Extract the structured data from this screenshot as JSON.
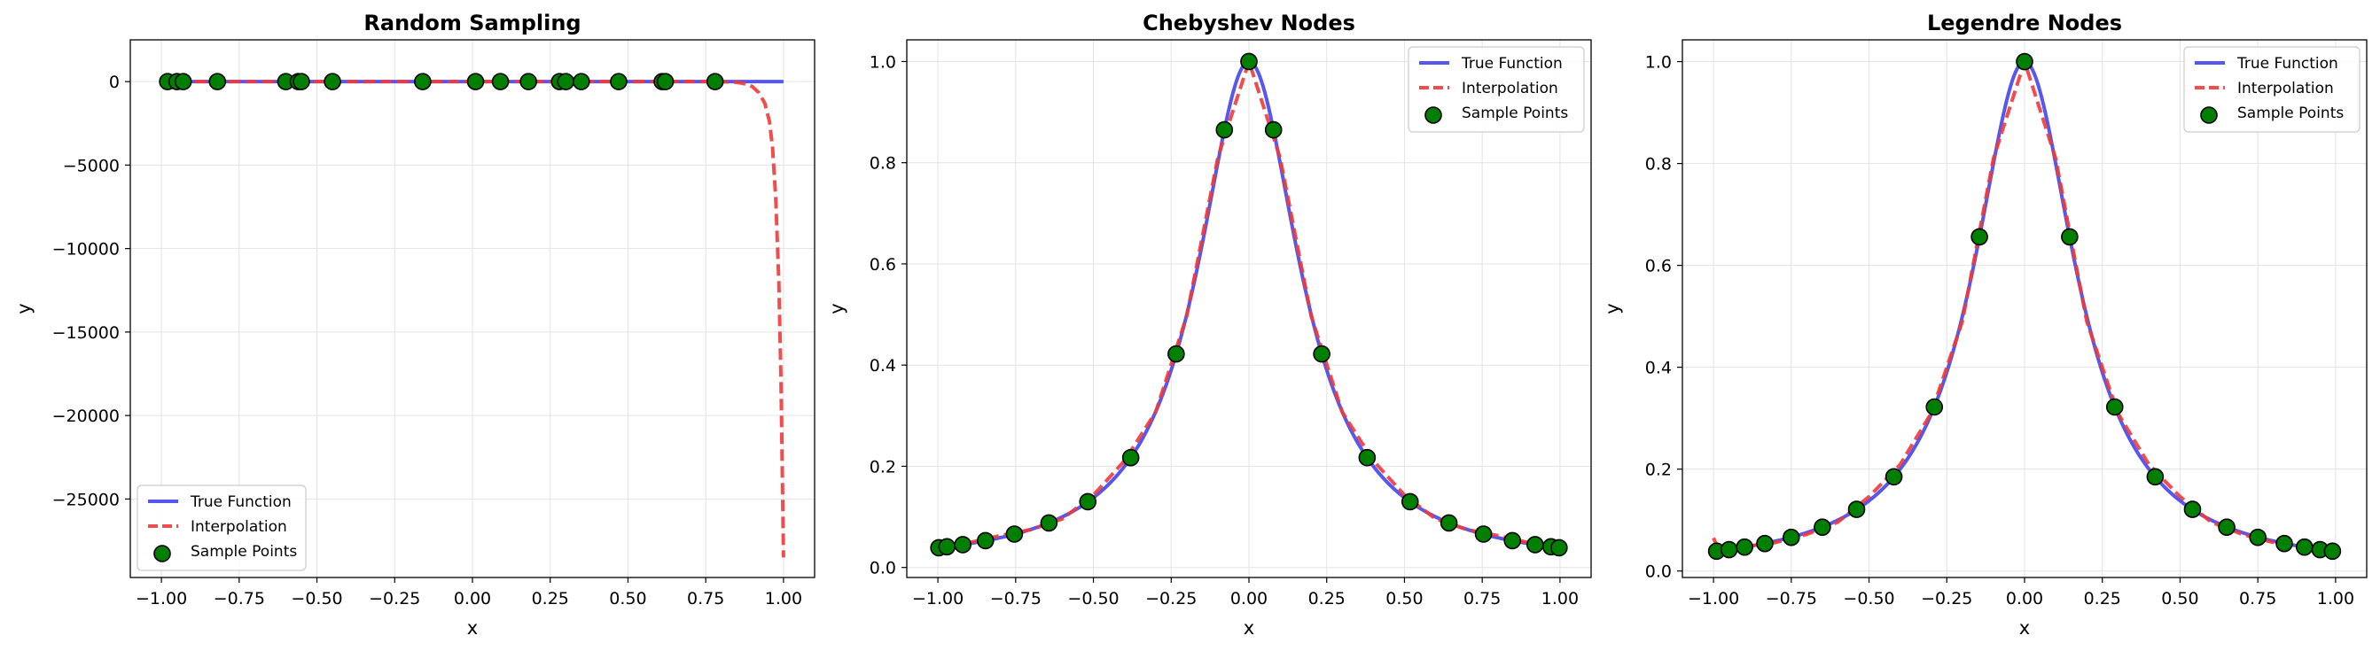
{
  "chart_data": [
    {
      "type": "line",
      "title": "Random Sampling",
      "xlabel": "x",
      "ylabel": "y",
      "xlim": [
        -1.1,
        1.1
      ],
      "ylim": [
        -29700,
        2500
      ],
      "xticks": [
        -1.0,
        -0.75,
        -0.5,
        -0.25,
        0.0,
        0.25,
        0.5,
        0.75,
        1.0
      ],
      "xtick_labels": [
        "−1.00",
        "−0.75",
        "−0.50",
        "−0.25",
        "0.00",
        "0.25",
        "0.50",
        "0.75",
        "1.00"
      ],
      "yticks": [
        0,
        -5000,
        -10000,
        -15000,
        -20000,
        -25000
      ],
      "ytick_labels": [
        "0",
        "−5000",
        "−10000",
        "−15000",
        "−20000",
        "−25000"
      ],
      "grid": true,
      "legend_position": "lower-left",
      "series": [
        {
          "name": "True Function",
          "style": "solid",
          "color": "#4444ee",
          "x": [
            -1.0,
            1.0
          ],
          "y": [
            0.04,
            0.04
          ]
        },
        {
          "name": "Interpolation",
          "style": "dashed",
          "color": "#ee3b3b",
          "x": [
            -1.0,
            0.8,
            0.85,
            0.88,
            0.9,
            0.92,
            0.94,
            0.955,
            0.965,
            0.975,
            0.985,
            0.992,
            1.0
          ],
          "y": [
            0,
            0,
            -40,
            -150,
            -300,
            -650,
            -1300,
            -2400,
            -4000,
            -7000,
            -12000,
            -18000,
            -28500
          ]
        },
        {
          "name": "Sample Points",
          "style": "markers",
          "color": "#007f00",
          "x": [
            -0.98,
            -0.95,
            -0.93,
            -0.82,
            -0.6,
            -0.56,
            -0.55,
            -0.45,
            -0.16,
            0.01,
            0.09,
            0.18,
            0.28,
            0.3,
            0.35,
            0.47,
            0.61,
            0.62,
            0.78
          ],
          "y": [
            0,
            0,
            0,
            0,
            0,
            0,
            0,
            0,
            0,
            0,
            0,
            0,
            0,
            0,
            0,
            0,
            0,
            0,
            0
          ]
        }
      ]
    },
    {
      "type": "line",
      "title": "Chebyshev Nodes",
      "xlabel": "x",
      "ylabel": "y",
      "xlim": [
        -1.1,
        1.1
      ],
      "ylim": [
        -0.0198,
        1.0428
      ],
      "xticks": [
        -1.0,
        -0.75,
        -0.5,
        -0.25,
        0.0,
        0.25,
        0.5,
        0.75,
        1.0
      ],
      "xtick_labels": [
        "−1.00",
        "−0.75",
        "−0.50",
        "−0.25",
        "0.00",
        "0.25",
        "0.50",
        "0.75",
        "1.00"
      ],
      "yticks": [
        0.0,
        0.2,
        0.4,
        0.6,
        0.8,
        1.0
      ],
      "ytick_labels": [
        "0.0",
        "0.2",
        "0.4",
        "0.6",
        "0.8",
        "1.0"
      ],
      "grid": true,
      "legend_position": "upper-right",
      "series": [
        {
          "name": "True Function",
          "style": "solid",
          "color": "#4444ee",
          "function": "1/(1+25x^2)"
        },
        {
          "name": "Interpolation",
          "style": "dashed",
          "color": "#ee3b3b",
          "x": [
            -1.0,
            -0.9,
            -0.8,
            -0.7,
            -0.6,
            -0.5,
            -0.4,
            -0.3,
            -0.2,
            -0.1,
            0.0,
            0.1,
            0.2,
            0.3,
            0.4,
            0.5,
            0.6,
            0.7,
            0.8,
            0.9,
            1.0
          ],
          "y": [
            0.038,
            0.049,
            0.063,
            0.075,
            0.096,
            0.143,
            0.211,
            0.307,
            0.497,
            0.81,
            1.0,
            0.81,
            0.497,
            0.307,
            0.211,
            0.143,
            0.096,
            0.075,
            0.063,
            0.049,
            0.038
          ]
        },
        {
          "name": "Sample Points",
          "style": "markers",
          "color": "#007f00",
          "x": [
            -0.997,
            -0.971,
            -0.92,
            -0.847,
            -0.754,
            -0.643,
            -0.518,
            -0.38,
            -0.234,
            -0.079,
            0.0,
            0.079,
            0.234,
            0.38,
            0.518,
            0.643,
            0.754,
            0.847,
            0.92,
            0.971,
            0.997
          ],
          "y": [
            0.039,
            0.041,
            0.045,
            0.053,
            0.066,
            0.088,
            0.13,
            0.217,
            0.422,
            0.865,
            1.0,
            0.865,
            0.422,
            0.217,
            0.13,
            0.088,
            0.066,
            0.053,
            0.045,
            0.041,
            0.039
          ]
        }
      ]
    },
    {
      "type": "line",
      "title": "Legendre Nodes",
      "xlabel": "x",
      "ylabel": "y",
      "xlim": [
        -1.1,
        1.1
      ],
      "ylim": [
        -0.0127,
        1.0427
      ],
      "xticks": [
        -1.0,
        -0.75,
        -0.5,
        -0.25,
        0.0,
        0.25,
        0.5,
        0.75,
        1.0
      ],
      "xtick_labels": [
        "−1.00",
        "−0.75",
        "−0.50",
        "−0.25",
        "0.00",
        "0.25",
        "0.50",
        "0.75",
        "1.00"
      ],
      "yticks": [
        0.0,
        0.2,
        0.4,
        0.6,
        0.8,
        1.0
      ],
      "ytick_labels": [
        "0.0",
        "0.2",
        "0.4",
        "0.6",
        "0.8",
        "1.0"
      ],
      "grid": true,
      "legend_position": "upper-right",
      "series": [
        {
          "name": "True Function",
          "style": "solid",
          "color": "#4444ee",
          "function": "1/(1+25x^2)"
        },
        {
          "name": "Interpolation",
          "style": "dashed",
          "color": "#ee3b3b",
          "x": [
            -1.0,
            -0.98,
            -0.95,
            -0.9,
            -0.8,
            -0.7,
            -0.6,
            -0.5,
            -0.4,
            -0.3,
            -0.2,
            -0.1,
            0.0,
            0.1,
            0.2,
            0.3,
            0.4,
            0.5,
            0.6,
            0.7,
            0.8,
            0.9,
            0.95,
            0.98,
            1.0
          ],
          "y": [
            0.065,
            0.036,
            0.042,
            0.048,
            0.056,
            0.072,
            0.096,
            0.146,
            0.209,
            0.31,
            0.49,
            0.81,
            1.0,
            0.81,
            0.49,
            0.31,
            0.209,
            0.146,
            0.096,
            0.072,
            0.056,
            0.048,
            0.042,
            0.036,
            0.065
          ]
        },
        {
          "name": "Sample Points",
          "style": "markers",
          "color": "#007f00",
          "x": [
            -0.99,
            -0.95,
            -0.9,
            -0.835,
            -0.75,
            -0.65,
            -0.54,
            -0.42,
            -0.29,
            -0.145,
            0.0,
            0.145,
            0.29,
            0.42,
            0.54,
            0.65,
            0.75,
            0.835,
            0.9,
            0.95,
            0.99
          ],
          "y": [
            0.039,
            0.042,
            0.047,
            0.054,
            0.066,
            0.086,
            0.121,
            0.185,
            0.322,
            0.656,
            1.0,
            0.656,
            0.322,
            0.185,
            0.121,
            0.086,
            0.066,
            0.054,
            0.047,
            0.042,
            0.039
          ]
        }
      ]
    }
  ]
}
